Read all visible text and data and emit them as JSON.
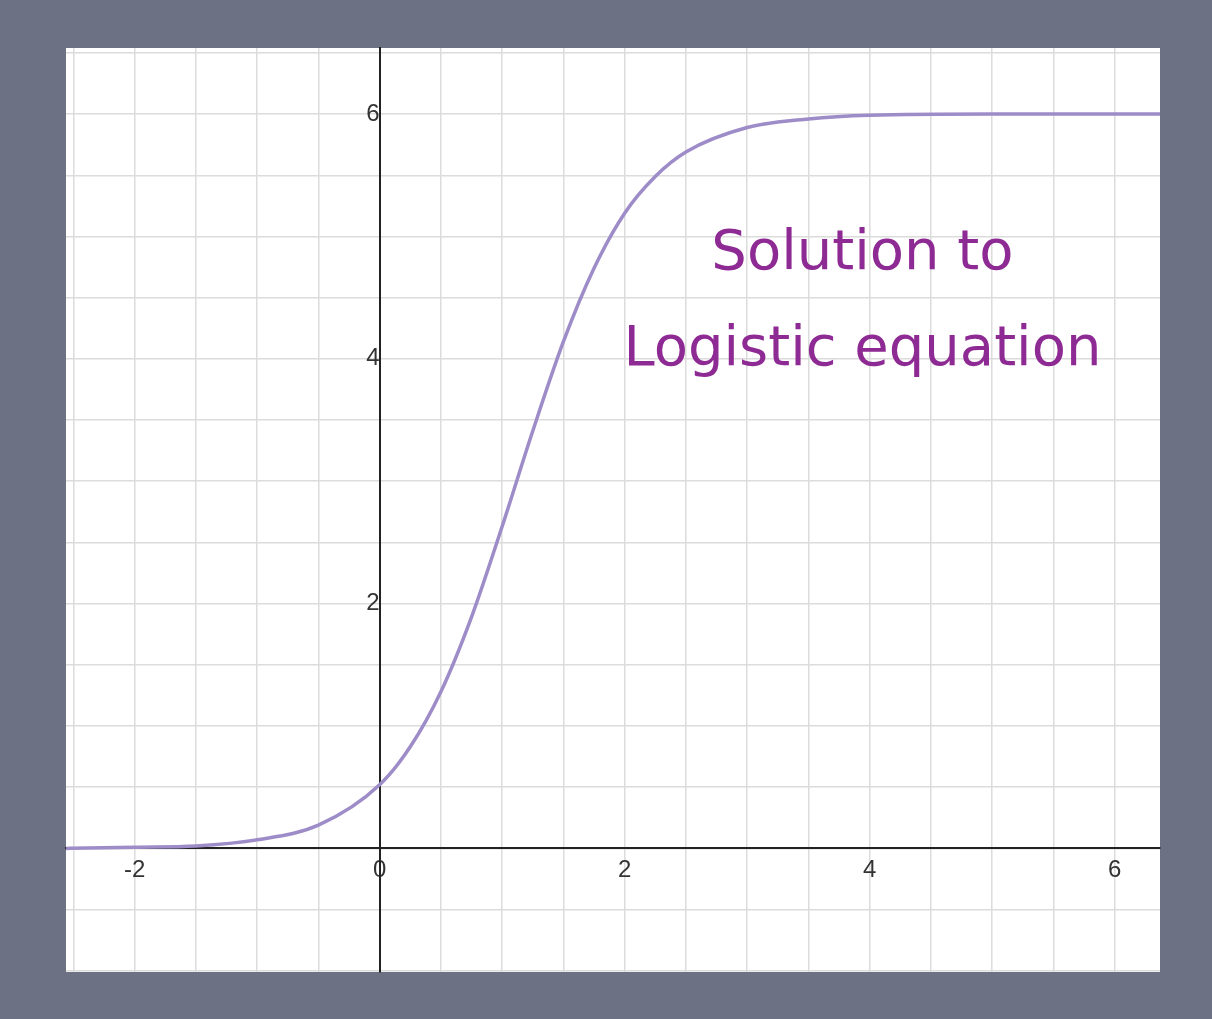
{
  "chart_data": {
    "type": "line",
    "x": [
      -2.56,
      -2,
      -1.5,
      -1,
      -0.5,
      0,
      0.25,
      0.5,
      0.75,
      1,
      1.25,
      1.5,
      1.75,
      2,
      2.25,
      2.5,
      3,
      3.5,
      4,
      5,
      6.37
    ],
    "series": [
      {
        "color": "#9d8cc8",
        "values": [
          0.0,
          0.01,
          0.02,
          0.07,
          0.19,
          0.52,
          0.83,
          1.28,
          1.89,
          2.63,
          3.41,
          4.14,
          4.74,
          5.19,
          5.49,
          5.69,
          5.89,
          5.96,
          5.99,
          6.0,
          6.0
        ]
      }
    ],
    "xlim": [
      -2.56,
      6.37
    ],
    "ylim": [
      -1.01,
      6.54
    ],
    "xticks": [
      {
        "value": -2.5,
        "label": null
      },
      -2,
      {
        "value": -1.5,
        "label": null
      },
      {
        "value": -1,
        "label": null
      },
      {
        "value": -0.5,
        "label": null
      },
      0,
      {
        "value": 0.5,
        "label": null
      },
      {
        "value": 1,
        "label": null
      },
      {
        "value": 1.5,
        "label": null
      },
      2,
      {
        "value": 2.5,
        "label": null
      },
      {
        "value": 3,
        "label": null
      },
      {
        "value": 3.5,
        "label": null
      },
      4,
      {
        "value": 4.5,
        "label": null
      },
      {
        "value": 5,
        "label": null
      },
      {
        "value": 5.5,
        "label": null
      },
      6
    ],
    "yticks": [
      {
        "value": -1,
        "label": null
      },
      {
        "value": -0.5,
        "label": null
      },
      {
        "value": 0,
        "label": null
      },
      {
        "value": 0.5,
        "label": null
      },
      {
        "value": 1,
        "label": null
      },
      {
        "value": 1.5,
        "label": null
      },
      2,
      {
        "value": 2.5,
        "label": null
      },
      {
        "value": 3,
        "label": null
      },
      {
        "value": 3.5,
        "label": null
      },
      4,
      {
        "value": 4.5,
        "label": null
      },
      {
        "value": 5,
        "label": null
      },
      {
        "value": 5.5,
        "label": null
      },
      6,
      {
        "value": 6.5,
        "label": null
      }
    ],
    "annotations": [
      "Solution to Logistic equation"
    ],
    "grid": true,
    "legend": false,
    "marker": "none",
    "line_style": "solid"
  }
}
